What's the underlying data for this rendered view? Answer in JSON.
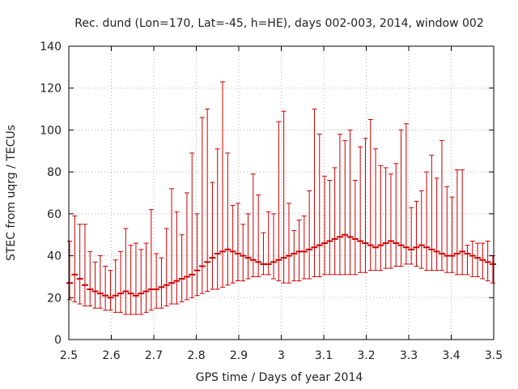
{
  "chart_data": {
    "type": "scatter",
    "title": "Rec. dund (Lon=170, Lat=-45, h=HE), days 002-003, 2014, window 002",
    "xlabel": "GPS time / Days of year 2014",
    "ylabel": "STEC from uqrg / TECUs",
    "xlim": [
      2.5,
      3.5
    ],
    "ylim": [
      0,
      140
    ],
    "x_ticks": [
      2.5,
      2.6,
      2.7,
      2.8,
      2.9,
      3.0,
      3.1,
      3.2,
      3.3,
      3.4,
      3.5
    ],
    "x_tick_labels": [
      "2.5",
      "2.6",
      "2.7",
      "2.8",
      "2.9",
      "3",
      "3.1",
      "3.2",
      "3.3",
      "3.4",
      "3.5"
    ],
    "y_ticks": [
      0,
      20,
      40,
      60,
      80,
      100,
      120,
      140
    ],
    "y_tick_labels": [
      "0",
      "20",
      "40",
      "60",
      "80",
      "100",
      "120",
      "140"
    ],
    "grid": true,
    "color": "#cc0000",
    "series": [
      {
        "x": [
          2.502,
          2.514,
          2.526,
          2.538,
          2.55,
          2.562,
          2.574,
          2.586,
          2.598,
          2.61,
          2.622,
          2.634,
          2.646,
          2.658,
          2.67,
          2.682,
          2.694,
          2.706,
          2.718,
          2.73,
          2.742,
          2.754,
          2.766,
          2.778,
          2.79,
          2.802,
          2.814,
          2.826,
          2.838,
          2.85,
          2.862,
          2.874,
          2.886,
          2.898,
          2.91,
          2.922,
          2.934,
          2.946,
          2.958,
          2.97,
          2.982,
          2.994,
          3.006,
          3.018,
          3.03,
          3.042,
          3.054,
          3.066,
          3.078,
          3.09,
          3.102,
          3.114,
          3.126,
          3.138,
          3.15,
          3.162,
          3.174,
          3.186,
          3.198,
          3.21,
          3.222,
          3.234,
          3.246,
          3.258,
          3.27,
          3.282,
          3.294,
          3.306,
          3.318,
          3.33,
          3.342,
          3.354,
          3.366,
          3.378,
          3.39,
          3.402,
          3.414,
          3.426,
          3.438,
          3.45,
          3.462,
          3.474,
          3.486,
          3.498
        ],
        "y": [
          27,
          31,
          29,
          26,
          24,
          23,
          22,
          21,
          20,
          21,
          22,
          23,
          22,
          21,
          22,
          23,
          24,
          24,
          25,
          26,
          27,
          28,
          29,
          30,
          31,
          33,
          35,
          37,
          39,
          41,
          42,
          43,
          42,
          41,
          40,
          39,
          38,
          37,
          36,
          36,
          37,
          38,
          39,
          40,
          41,
          42,
          42,
          43,
          44,
          45,
          46,
          47,
          48,
          49,
          50,
          49,
          48,
          47,
          46,
          45,
          44,
          45,
          46,
          47,
          46,
          45,
          44,
          43,
          44,
          45,
          44,
          43,
          42,
          41,
          40,
          40,
          41,
          42,
          41,
          40,
          39,
          38,
          37,
          36
        ],
        "y_low": [
          19,
          18,
          17,
          16,
          16,
          15,
          15,
          14,
          14,
          13,
          13,
          12,
          12,
          12,
          12,
          13,
          14,
          15,
          15,
          16,
          17,
          17,
          18,
          19,
          20,
          21,
          22,
          23,
          24,
          24,
          25,
          26,
          27,
          28,
          28,
          29,
          30,
          30,
          31,
          31,
          29,
          28,
          27,
          27,
          28,
          28,
          29,
          29,
          30,
          30,
          31,
          31,
          31,
          31,
          31,
          31,
          31,
          32,
          32,
          33,
          33,
          33,
          34,
          34,
          35,
          35,
          36,
          36,
          35,
          34,
          33,
          33,
          33,
          33,
          32,
          32,
          31,
          31,
          31,
          30,
          30,
          29,
          28,
          27
        ],
        "y_high": [
          47,
          59,
          55,
          55,
          42,
          37,
          40,
          35,
          33,
          38,
          42,
          53,
          45,
          46,
          43,
          46,
          62,
          41,
          39,
          53,
          72,
          61,
          50,
          70,
          89,
          60,
          106,
          110,
          75,
          91,
          123,
          89,
          64,
          65,
          55,
          60,
          79,
          69,
          51,
          61,
          60,
          104,
          109,
          65,
          52,
          57,
          59,
          71,
          110,
          98,
          78,
          76,
          82,
          98,
          95,
          100,
          76,
          92,
          96,
          105,
          91,
          83,
          82,
          79,
          84,
          100,
          103,
          63,
          66,
          71,
          80,
          88,
          77,
          95,
          73,
          68,
          81,
          81,
          45,
          47,
          46,
          46,
          47,
          40
        ]
      }
    ]
  }
}
